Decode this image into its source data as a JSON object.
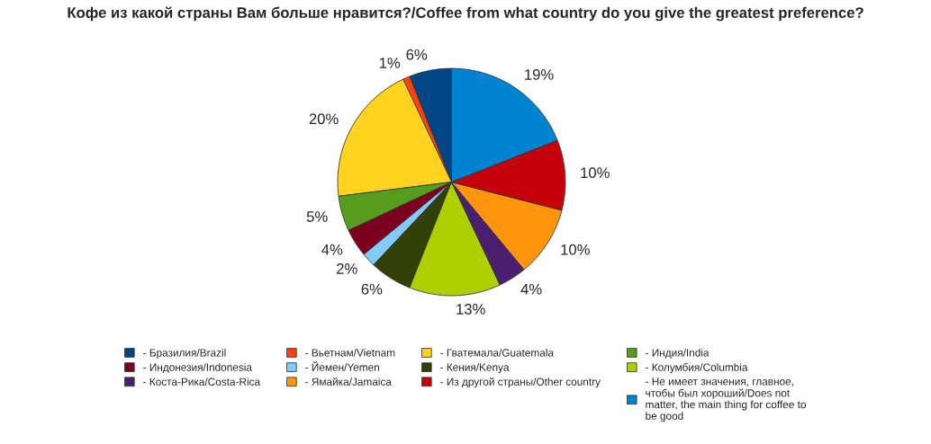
{
  "chart_data": {
    "type": "pie",
    "title": "Кофе из какой страны Вам больше нравится?/Coffee from what country do you give the greatest preference?",
    "categories": [
      "- Бразилия/Brazil",
      "- Вьетнам/Vietnam",
      "- Гватемала/Guatemala",
      "- Индия/India",
      "- Индонезия/Indonesia",
      "- Йемен/Yemen",
      "- Кения/Kenya",
      "- Колумбия/Columbia",
      "- Коста-Рика/Costa-Rica",
      "- Ямайка/Jamaica",
      "- Из другой страны/Other country",
      "- Не имеет значения, главное,\nчтобы был хороший/Does not\nmatter, the main thing for coffee to\nbe good"
    ],
    "values": [
      6,
      1,
      20,
      5,
      4,
      2,
      6,
      13,
      4,
      10,
      10,
      19
    ],
    "value_labels": [
      "6%",
      "1%",
      "20%",
      "5%",
      "4%",
      "2%",
      "6%",
      "13%",
      "4%",
      "10%",
      "10%",
      "19%"
    ],
    "colors": [
      "#004586",
      "#ff420e",
      "#ffd320",
      "#579d1c",
      "#7e0021",
      "#83caff",
      "#314004",
      "#aecf00",
      "#4b1f6f",
      "#ff950e",
      "#c5000b",
      "#0084d1"
    ],
    "legend": "bottom"
  }
}
